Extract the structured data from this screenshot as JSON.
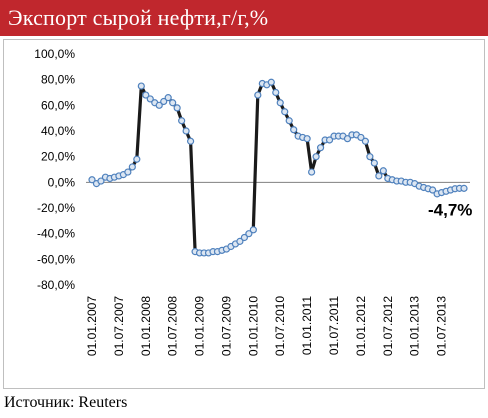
{
  "header": {
    "title": "Экспорт сырой нефти,г/г,%"
  },
  "footer": {
    "source": "Источник: Reuters"
  },
  "chart_data": {
    "type": "line",
    "title": "Экспорт сырой нефти,г/г,%",
    "xlabel": "",
    "ylabel": "",
    "ylim": [
      -80,
      100
    ],
    "yticks": [
      -80,
      -60,
      -40,
      -20,
      0,
      20,
      40,
      60,
      80,
      100
    ],
    "ytick_labels": [
      "-80,0%",
      "-60,0%",
      "-40,0%",
      "-20,0%",
      "0,0%",
      "20,0%",
      "40,0%",
      "60,0%",
      "80,0%",
      "100,0%"
    ],
    "xtick_labels": [
      "01.01.2007",
      "01.07.2007",
      "01.01.2008",
      "01.07.2008",
      "01.01.2009",
      "01.07.2009",
      "01.01.2010",
      "01.07.2010",
      "01.01.2011",
      "01.07.2011",
      "01.01.2012",
      "01.07.2012",
      "01.01.2013",
      "01.07.2013"
    ],
    "grid": false,
    "line_color": "#1a1a1a",
    "marker_fill": "#dce6f2",
    "marker_stroke": "#4f81bd",
    "annotation": {
      "text": "-4,7%",
      "value": -4.7
    },
    "series": [
      {
        "x": [
          "2007-01",
          "2007-02",
          "2007-03",
          "2007-04",
          "2007-05",
          "2007-06",
          "2007-07",
          "2007-08",
          "2007-09",
          "2007-10",
          "2007-11",
          "2007-12",
          "2008-01",
          "2008-02",
          "2008-03",
          "2008-04",
          "2008-05",
          "2008-06",
          "2008-07",
          "2008-08",
          "2008-09",
          "2008-10",
          "2008-11",
          "2008-12",
          "2009-01",
          "2009-02",
          "2009-03",
          "2009-04",
          "2009-05",
          "2009-06",
          "2009-07",
          "2009-08",
          "2009-09",
          "2009-10",
          "2009-11",
          "2009-12",
          "2010-01",
          "2010-02",
          "2010-03",
          "2010-04",
          "2010-05",
          "2010-06",
          "2010-07",
          "2010-08",
          "2010-09",
          "2010-10",
          "2010-11",
          "2010-12",
          "2011-01",
          "2011-02",
          "2011-03",
          "2011-04",
          "2011-05",
          "2011-06",
          "2011-07",
          "2011-08",
          "2011-09",
          "2011-10",
          "2011-11",
          "2011-12",
          "2012-01",
          "2012-02",
          "2012-03",
          "2012-04",
          "2012-05",
          "2012-06",
          "2012-07",
          "2012-08",
          "2012-09",
          "2012-10",
          "2012-11",
          "2012-12",
          "2013-01",
          "2013-02",
          "2013-03",
          "2013-04",
          "2013-05",
          "2013-06",
          "2013-07",
          "2013-08",
          "2013-09",
          "2013-10",
          "2013-11",
          "2013-12"
        ],
        "y": [
          2,
          -1,
          1,
          4,
          3,
          4,
          5,
          6,
          8,
          12,
          18,
          75,
          68,
          65,
          62,
          60,
          63,
          66,
          62,
          58,
          48,
          40,
          32,
          -54,
          -55,
          -55,
          -55,
          -54,
          -54,
          -53,
          -52,
          -50,
          -48,
          -46,
          -43,
          -40,
          -37,
          68,
          77,
          76,
          78,
          70,
          62,
          55,
          48,
          41,
          36,
          35,
          34,
          8,
          20,
          27,
          33,
          33,
          36,
          36,
          36,
          34,
          37,
          37,
          35,
          32,
          20,
          15,
          5,
          9,
          3,
          2,
          1,
          1,
          0,
          0,
          -1,
          -3,
          -4,
          -5,
          -6,
          -9,
          -8,
          -7,
          -6,
          -5,
          -4.7,
          -4.7
        ]
      }
    ]
  }
}
